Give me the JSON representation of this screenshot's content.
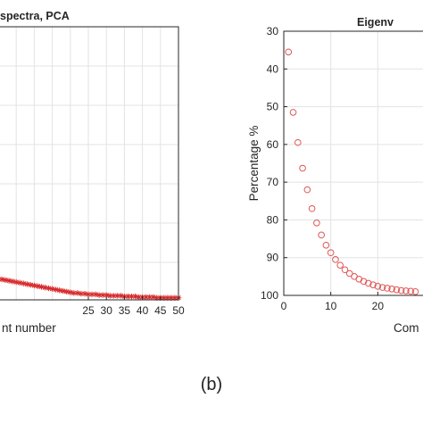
{
  "caption": "(b)",
  "chart_data": [
    {
      "type": "scatter",
      "title": "spectra, PCA",
      "xlabel": "nt number",
      "ylabel": "",
      "xlim": [
        0,
        50
      ],
      "xticks": [
        25,
        30,
        35,
        40,
        45,
        50
      ],
      "x_tick_labels": [
        "25",
        "30",
        "35",
        "40",
        "45",
        "50"
      ],
      "grid": true,
      "marker": "asterisk",
      "marker_color": "#d62728",
      "series": [
        {
          "x": [
            0,
            1,
            2,
            3,
            4,
            5,
            6,
            7,
            8,
            9,
            10,
            11,
            12,
            13,
            14,
            15,
            16,
            17,
            18,
            19,
            20,
            21,
            22,
            23,
            24,
            25,
            26,
            27,
            28,
            29,
            30,
            31,
            32,
            33,
            34,
            35,
            36,
            37,
            38,
            39,
            40,
            41,
            42,
            43,
            44,
            45,
            46,
            47,
            48,
            49,
            50
          ],
          "y": [
            0.3,
            0.3,
            0.29,
            0.28,
            0.27,
            0.26,
            0.25,
            0.24,
            0.23,
            0.22,
            0.21,
            0.2,
            0.19,
            0.18,
            0.17,
            0.16,
            0.15,
            0.14,
            0.13,
            0.12,
            0.11,
            0.1,
            0.1,
            0.09,
            0.09,
            0.08,
            0.08,
            0.08,
            0.07,
            0.07,
            0.07,
            0.06,
            0.06,
            0.06,
            0.06,
            0.05,
            0.05,
            0.05,
            0.05,
            0.04,
            0.04,
            0.04,
            0.04,
            0.04,
            0.03,
            0.03,
            0.03,
            0.03,
            0.03,
            0.03,
            0.03
          ]
        }
      ]
    },
    {
      "type": "scatter",
      "title": "Eigenv",
      "xlabel": "Com",
      "ylabel": "Percentage %",
      "xlim": [
        0,
        30
      ],
      "ylim": [
        30,
        100
      ],
      "y_reversed": true,
      "xticks": [
        0,
        10,
        20
      ],
      "yticks": [
        30,
        40,
        50,
        60,
        70,
        80,
        90,
        100
      ],
      "grid": true,
      "marker": "circle",
      "marker_color": "#e05555",
      "series": [
        {
          "x": [
            1,
            2,
            3,
            4,
            5,
            6,
            7,
            8,
            9,
            10,
            11,
            12,
            13,
            14,
            15,
            16,
            17,
            18,
            19,
            20,
            21,
            22,
            23,
            24,
            25,
            26,
            27,
            28
          ],
          "y": [
            35.5,
            51.5,
            59.5,
            66.3,
            72.0,
            77.0,
            80.8,
            84.0,
            86.7,
            88.7,
            90.5,
            92.0,
            93.2,
            94.2,
            95.0,
            95.7,
            96.3,
            96.8,
            97.2,
            97.6,
            97.9,
            98.1,
            98.3,
            98.5,
            98.7,
            98.8,
            98.9,
            99.0
          ]
        }
      ]
    }
  ]
}
